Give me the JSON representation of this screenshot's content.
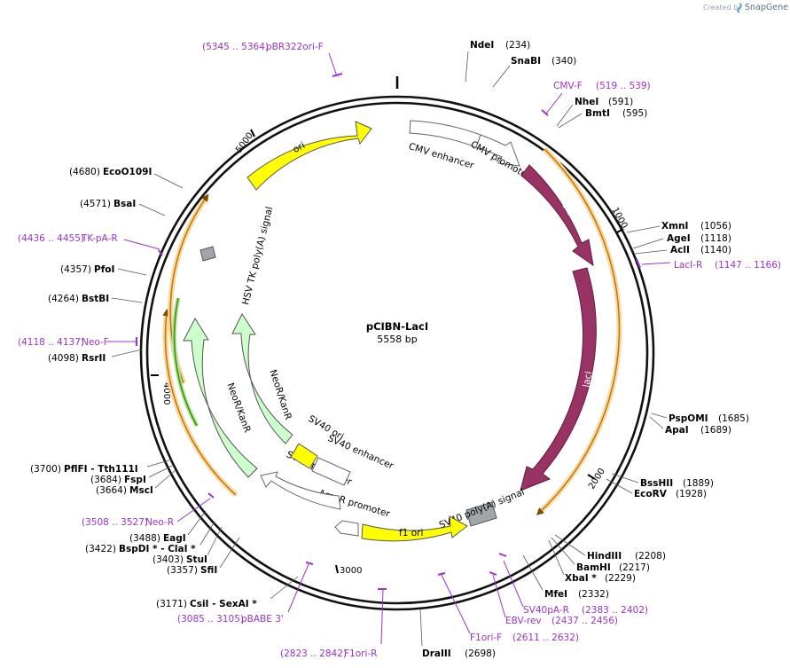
{
  "credit": {
    "prefix": "Created by",
    "brand": "SnapGene"
  },
  "plasmid": {
    "name": "pCIBN-LacI",
    "size": "5558 bp"
  },
  "ticks": [
    "1000",
    "2000",
    "3000",
    "4000",
    "5000"
  ],
  "features": {
    "ori": "ori",
    "cmv_enhancer": "CMV enhancer",
    "cmv_promoter": "CMV promoter",
    "cibn": "CIBN",
    "laci": "lacI",
    "sv40_polya": "SV40 poly(A) signal",
    "f1_ori": "f1 ori",
    "ampr_promoter": "AmpR promoter",
    "sv40_promoter": "SV40 promoter",
    "sv40_ori": "SV40 ori",
    "sv40_enhancer": "SV40 enhancer",
    "neor_inner": "NeoR/KanR",
    "neor_outer": "NeoR/KanR",
    "hsv_tk": "HSV TK poly(A) signal"
  },
  "sites": [
    {
      "name": "NdeI",
      "pos": "(234)"
    },
    {
      "name": "SnaBI",
      "pos": "(340)"
    },
    {
      "name": "NheI",
      "pos": "(591)"
    },
    {
      "name": "BmtI",
      "pos": "(595)"
    },
    {
      "name": "XmnI",
      "pos": "(1056)"
    },
    {
      "name": "AgeI",
      "pos": "(1118)"
    },
    {
      "name": "AclI",
      "pos": "(1140)"
    },
    {
      "name": "PspOMI",
      "pos": "(1685)"
    },
    {
      "name": "ApaI",
      "pos": "(1689)"
    },
    {
      "name": "BssHII",
      "pos": "(1889)"
    },
    {
      "name": "EcoRV",
      "pos": "(1928)"
    },
    {
      "name": "HindIII",
      "pos": "(2208)"
    },
    {
      "name": "BamHI",
      "pos": "(2217)"
    },
    {
      "name": "XbaI  *",
      "pos": "(2229)"
    },
    {
      "name": "MfeI",
      "pos": "(2332)"
    },
    {
      "name": "DraIII",
      "pos": "(2698)"
    },
    {
      "name": "EcoO109I",
      "pos": "(4680)"
    },
    {
      "name": "BsaI",
      "pos": "(4571)"
    },
    {
      "name": "PfoI",
      "pos": "(4357)"
    },
    {
      "name": "BstBI",
      "pos": "(4264)"
    },
    {
      "name": "RsrII",
      "pos": "(4098)"
    },
    {
      "name": "PflFI  - Tth111I",
      "pos": "(3700)"
    },
    {
      "name": "FspI",
      "pos": "(3684)"
    },
    {
      "name": "MscI",
      "pos": "(3664)"
    },
    {
      "name": "EagI",
      "pos": "(3488)"
    },
    {
      "name": "BspDI *  - ClaI *",
      "pos": "(3422)"
    },
    {
      "name": "StuI",
      "pos": "(3403)"
    },
    {
      "name": "SfiI",
      "pos": "(3357)"
    },
    {
      "name": "CsiI  - SexAI *",
      "pos": "(3171)"
    }
  ],
  "primers": [
    {
      "name": "pBR322ori-F",
      "range": "(5345 .. 5364)"
    },
    {
      "name": "CMV-F",
      "range": "(519 .. 539)"
    },
    {
      "name": "LacI-R",
      "range": "(1147 .. 1166)"
    },
    {
      "name": "SV40pA-R",
      "range": "(2383 .. 2402)"
    },
    {
      "name": "EBV-rev",
      "range": "(2437 .. 2456)"
    },
    {
      "name": "F1ori-F",
      "range": "(2611 .. 2632)"
    },
    {
      "name": "F1ori-R",
      "range": "(2823 .. 2842)"
    },
    {
      "name": "pBABE 3'",
      "range": "(3085 .. 3105)"
    },
    {
      "name": "Neo-R",
      "range": "(3508 .. 3527)"
    },
    {
      "name": "Neo-F",
      "range": "(4118 .. 4137)"
    },
    {
      "name": "TK-pA-R",
      "range": "(4436 .. 4455)"
    }
  ],
  "colors": {
    "ori": "#ffff00",
    "cibn_laci": "#993366",
    "neor": "#ccffcc",
    "orf_outline": "#f0a030",
    "orf_green": "#339900",
    "primer": "#9933cc",
    "polya": "#a0a6ac"
  }
}
